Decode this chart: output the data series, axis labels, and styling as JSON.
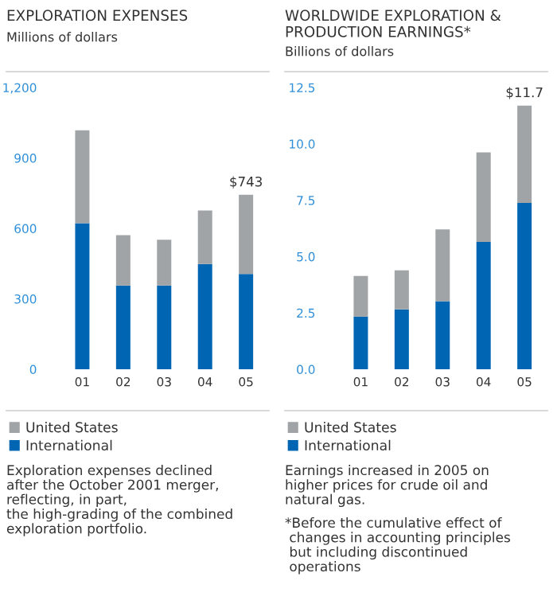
{
  "chart_data": [
    {
      "type": "bar",
      "title": "EXPLORATION EXPENSES",
      "subtitle": "Millions of dollars",
      "categories": [
        "01",
        "02",
        "03",
        "04",
        "05"
      ],
      "stacked": true,
      "legend": "bottom",
      "grid": false,
      "series": [
        {
          "name": "International",
          "color": "#0066b3",
          "values": [
            622,
            357,
            357,
            448,
            406
          ]
        },
        {
          "name": "United States",
          "color": "#a0a4a6",
          "values": [
            396,
            214,
            195,
            228,
            337
          ]
        }
      ],
      "totals": [
        null,
        null,
        null,
        null,
        "$743"
      ],
      "ylim": [
        0,
        1200
      ],
      "yticks": [
        0,
        300,
        600,
        900,
        {
          "value": 1200,
          "label": "1,200"
        }
      ],
      "annotations": [
        "Exploration expenses declined\nafter the October 2001 merger,\nreflecting, in part,\nthe high-grading of the combined\nexploration portfolio."
      ]
    },
    {
      "type": "bar",
      "title": "WORLDWIDE EXPLORATION &\nPRODUCTION EARNINGS*",
      "subtitle": "Billions of dollars",
      "categories": [
        "01",
        "02",
        "03",
        "04",
        "05"
      ],
      "stacked": true,
      "legend": "bottom",
      "grid": false,
      "series": [
        {
          "name": "International",
          "color": "#0066b3",
          "values": [
            2.34,
            2.66,
            3.02,
            5.65,
            7.38
          ]
        },
        {
          "name": "United States",
          "color": "#a0a4a6",
          "values": [
            1.8,
            1.73,
            3.19,
            3.97,
            4.32
          ]
        }
      ],
      "totals": [
        null,
        null,
        null,
        null,
        "$11.7"
      ],
      "ylim": [
        0,
        12.5
      ],
      "yticks": [
        {
          "value": 0,
          "label": "0.0"
        },
        {
          "value": 2.5,
          "label": "2.5"
        },
        {
          "value": 5,
          "label": "5.0"
        },
        {
          "value": 7.5,
          "label": "7.5"
        },
        {
          "value": 10,
          "label": "10.0"
        },
        {
          "value": 12.5,
          "label": "12.5"
        }
      ],
      "annotations": [
        "Earnings increased in 2005 on\nhigher prices for crude oil and\nnatural gas.",
        "*Before the cumulative effect of\n changes in accounting principles\n but including discontinued\n operations"
      ]
    }
  ]
}
